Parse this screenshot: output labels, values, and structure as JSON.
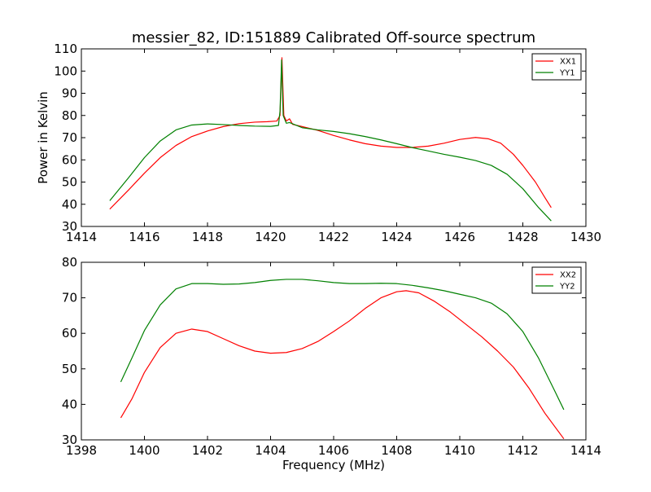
{
  "chart_data": [
    {
      "type": "line",
      "title": "messier_82, ID:151889 Calibrated Off-source spectrum",
      "xlabel": "",
      "ylabel": "Power in Kelvin",
      "xlim": [
        1414,
        1430
      ],
      "ylim": [
        30,
        110
      ],
      "xticks": [
        "1414",
        "1416",
        "1418",
        "1420",
        "1422",
        "1424",
        "1426",
        "1428",
        "1430"
      ],
      "yticks": [
        "30",
        "40",
        "50",
        "60",
        "70",
        "80",
        "90",
        "100",
        "110"
      ],
      "legend": "top-right",
      "series": [
        {
          "name": "XX1",
          "color": "#ff0000",
          "points": [
            [
              1414.9,
              37.8
            ],
            [
              1415.5,
              46.5
            ],
            [
              1416,
              54
            ],
            [
              1416.5,
              61
            ],
            [
              1417,
              66.5
            ],
            [
              1417.5,
              70.5
            ],
            [
              1418,
              73
            ],
            [
              1418.5,
              75
            ],
            [
              1419,
              76.3
            ],
            [
              1419.5,
              77
            ],
            [
              1419.9,
              77.2
            ],
            [
              1420.2,
              77.5
            ],
            [
              1420.3,
              80
            ],
            [
              1420.36,
              106
            ],
            [
              1420.42,
              80
            ],
            [
              1420.5,
              77.5
            ],
            [
              1420.6,
              78.5
            ],
            [
              1420.7,
              76
            ],
            [
              1421,
              75
            ],
            [
              1421.5,
              73.3
            ],
            [
              1422,
              71
            ],
            [
              1422.5,
              69
            ],
            [
              1423,
              67.3
            ],
            [
              1423.5,
              66.2
            ],
            [
              1424,
              65.6
            ],
            [
              1424.5,
              65.6
            ],
            [
              1425,
              66.2
            ],
            [
              1425.5,
              67.5
            ],
            [
              1426,
              69.2
            ],
            [
              1426.5,
              70.1
            ],
            [
              1426.9,
              69.5
            ],
            [
              1427.3,
              67.5
            ],
            [
              1427.7,
              62.5
            ],
            [
              1428,
              57.5
            ],
            [
              1428.4,
              50
            ],
            [
              1428.7,
              43
            ],
            [
              1428.9,
              38.5
            ]
          ]
        },
        {
          "name": "YY1",
          "color": "#008000",
          "points": [
            [
              1414.9,
              41.6
            ],
            [
              1415.5,
              52
            ],
            [
              1416,
              61
            ],
            [
              1416.5,
              68.5
            ],
            [
              1417,
              73.5
            ],
            [
              1417.5,
              75.7
            ],
            [
              1418,
              76.2
            ],
            [
              1418.5,
              75.9
            ],
            [
              1419,
              75.5
            ],
            [
              1419.5,
              75.2
            ],
            [
              1420,
              75.1
            ],
            [
              1420.25,
              75.5
            ],
            [
              1420.3,
              82
            ],
            [
              1420.35,
              105
            ],
            [
              1420.4,
              80
            ],
            [
              1420.5,
              76.5
            ],
            [
              1420.6,
              76.8
            ],
            [
              1421,
              74.5
            ],
            [
              1421.5,
              73.5
            ],
            [
              1422,
              72.8
            ],
            [
              1422.5,
              71.8
            ],
            [
              1423,
              70.5
            ],
            [
              1423.5,
              69
            ],
            [
              1424,
              67.3
            ],
            [
              1424.5,
              65.5
            ],
            [
              1425,
              64
            ],
            [
              1425.5,
              62.5
            ],
            [
              1426,
              61.2
            ],
            [
              1426.5,
              59.7
            ],
            [
              1427,
              57.5
            ],
            [
              1427.5,
              53.5
            ],
            [
              1428,
              47
            ],
            [
              1428.5,
              38.5
            ],
            [
              1428.9,
              32.5
            ]
          ]
        }
      ]
    },
    {
      "type": "line",
      "title": "",
      "xlabel": "Frequency (MHz)",
      "ylabel": "",
      "xlim": [
        1398,
        1414
      ],
      "ylim": [
        30,
        80
      ],
      "xticks": [
        "1398",
        "1400",
        "1402",
        "1404",
        "1406",
        "1408",
        "1410",
        "1412",
        "1414"
      ],
      "yticks": [
        "30",
        "40",
        "50",
        "60",
        "70",
        "80"
      ],
      "legend": "top-right",
      "series": [
        {
          "name": "XX2",
          "color": "#ff0000",
          "points": [
            [
              1399.25,
              36.2
            ],
            [
              1399.6,
              41.5
            ],
            [
              1400,
              49
            ],
            [
              1400.5,
              56
            ],
            [
              1401,
              60
            ],
            [
              1401.5,
              61.2
            ],
            [
              1402,
              60.5
            ],
            [
              1402.5,
              58.5
            ],
            [
              1403,
              56.5
            ],
            [
              1403.5,
              55
            ],
            [
              1404,
              54.4
            ],
            [
              1404.5,
              54.6
            ],
            [
              1405,
              55.7
            ],
            [
              1405.5,
              57.7
            ],
            [
              1406,
              60.5
            ],
            [
              1406.5,
              63.5
            ],
            [
              1407,
              67
            ],
            [
              1407.5,
              70
            ],
            [
              1408,
              71.7
            ],
            [
              1408.3,
              72
            ],
            [
              1408.7,
              71.4
            ],
            [
              1409.2,
              69
            ],
            [
              1409.7,
              66
            ],
            [
              1410.2,
              62.5
            ],
            [
              1410.7,
              59
            ],
            [
              1411.2,
              55
            ],
            [
              1411.7,
              50.5
            ],
            [
              1412.2,
              44.5
            ],
            [
              1412.7,
              37.5
            ],
            [
              1413.3,
              30.3
            ]
          ]
        },
        {
          "name": "YY2",
          "color": "#008000",
          "points": [
            [
              1399.25,
              46.3
            ],
            [
              1399.6,
              53
            ],
            [
              1400,
              60.8
            ],
            [
              1400.5,
              68
            ],
            [
              1401,
              72.5
            ],
            [
              1401.5,
              74
            ],
            [
              1402,
              74
            ],
            [
              1402.5,
              73.8
            ],
            [
              1403,
              73.9
            ],
            [
              1403.5,
              74.3
            ],
            [
              1404,
              74.9
            ],
            [
              1404.5,
              75.2
            ],
            [
              1405,
              75.2
            ],
            [
              1405.5,
              74.8
            ],
            [
              1406,
              74.3
            ],
            [
              1406.5,
              74
            ],
            [
              1407,
              74
            ],
            [
              1407.5,
              74.1
            ],
            [
              1408,
              74
            ],
            [
              1408.5,
              73.5
            ],
            [
              1409,
              72.8
            ],
            [
              1409.5,
              72
            ],
            [
              1410,
              71
            ],
            [
              1410.5,
              70
            ],
            [
              1411,
              68.5
            ],
            [
              1411.5,
              65.5
            ],
            [
              1412,
              60.5
            ],
            [
              1412.5,
              53
            ],
            [
              1413,
              44
            ],
            [
              1413.3,
              38.5
            ]
          ]
        }
      ]
    }
  ]
}
